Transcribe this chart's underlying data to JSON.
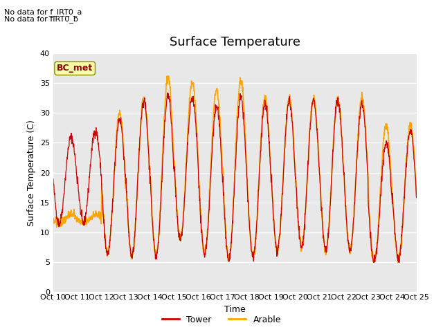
{
  "title": "Surface Temperature",
  "ylabel": "Surface Temperature (C)",
  "xlabel": "Time",
  "ylim": [
    0,
    40
  ],
  "xlim": [
    0,
    15
  ],
  "xtick_labels": [
    "Oct 10",
    "Oct 11",
    "Oct 12",
    "Oct 13",
    "Oct 14",
    "Oct 15",
    "Oct 16",
    "Oct 17",
    "Oct 18",
    "Oct 19",
    "Oct 20",
    "Oct 21",
    "Oct 22",
    "Oct 23",
    "Oct 24",
    "Oct 25"
  ],
  "tower_color": "#cc0000",
  "arable_color": "#ffa500",
  "bg_color": "#e8e8e8",
  "fig_bg_color": "#ffffff",
  "bc_met_label": "BC_met",
  "bc_met_color": "#8b0000",
  "bc_met_bg": "#ffffaa",
  "no_data_text1": "No data for f_IRT0_a",
  "no_data_text2": "No data for f̅IRT0̅_b",
  "legend_tower": "Tower",
  "legend_arable": "Arable",
  "title_fontsize": 13,
  "label_fontsize": 9,
  "tick_fontsize": 8,
  "day_mins": [
    11.5,
    11.5,
    6.5,
    6.0,
    6.0,
    9.0,
    6.5,
    5.5,
    6.0,
    7.0,
    7.5,
    7.0,
    7.0,
    5.0,
    5.5
  ],
  "day_maxs_tower": [
    26.0,
    27.0,
    29.0,
    32.0,
    33.0,
    32.5,
    31.0,
    32.5,
    31.5,
    32.0,
    32.0,
    32.0,
    31.5,
    25.0,
    27.0
  ],
  "day_maxs_arable": [
    13.0,
    13.0,
    30.0,
    32.5,
    36.0,
    35.0,
    34.0,
    35.5,
    32.5,
    32.5,
    32.5,
    32.5,
    32.5,
    28.0,
    28.0
  ]
}
